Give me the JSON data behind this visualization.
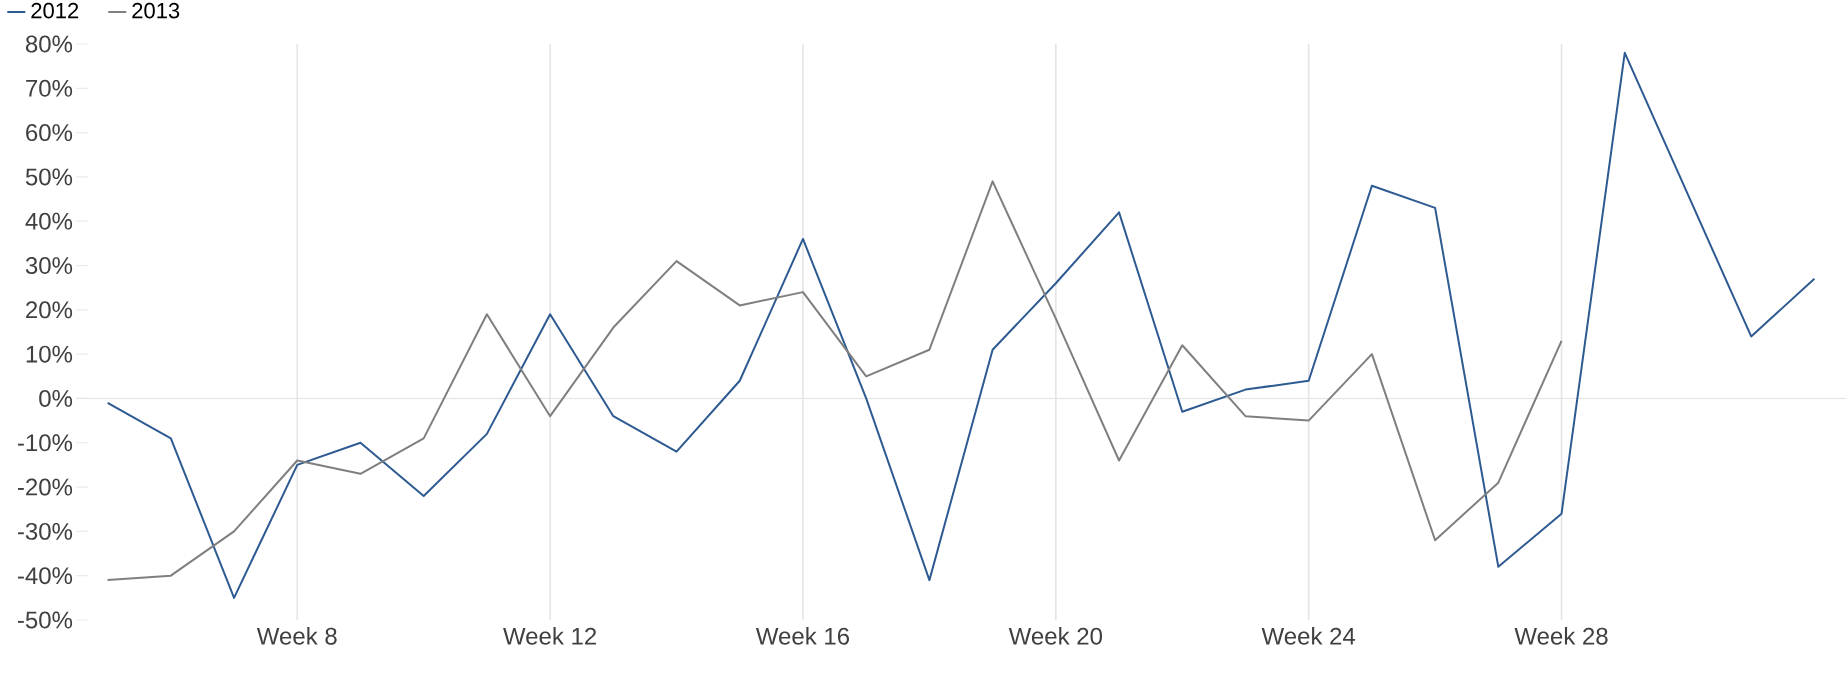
{
  "chart_data": {
    "type": "line",
    "categories": [
      null,
      null,
      null,
      "Week 8",
      null,
      null,
      null,
      "Week 12",
      null,
      null,
      null,
      "Week 16",
      null,
      null,
      null,
      "Week 20",
      null,
      null,
      null,
      "Week 24",
      null,
      null,
      null,
      "Week 28",
      null,
      null,
      null,
      null
    ],
    "series": [
      {
        "name": "2012",
        "color": "#2e5a92",
        "values": [
          -1,
          -9,
          -45,
          -15,
          -10,
          -22,
          -8,
          19,
          -4,
          -12,
          4,
          36,
          0,
          -41,
          11,
          26,
          42,
          -3,
          2,
          4,
          48,
          43,
          -38,
          -26,
          78,
          46,
          14,
          27
        ]
      },
      {
        "name": "2013",
        "color": "#7f7f7f",
        "values": [
          -41,
          -40,
          -30,
          -14,
          -17,
          -9,
          19,
          -4,
          16,
          31,
          21,
          24,
          5,
          11,
          49,
          18,
          -14,
          12,
          -4,
          -5,
          10,
          -32,
          -19,
          13,
          null,
          null,
          null,
          null
        ]
      }
    ],
    "ylim": [
      -50,
      80
    ],
    "yticks": [
      {
        "value": -50,
        "label": "-50%"
      },
      {
        "value": -40,
        "label": "-40%"
      },
      {
        "value": -30,
        "label": "-30%"
      },
      {
        "value": -20,
        "label": "-20%"
      },
      {
        "value": -10,
        "label": "-10%"
      },
      {
        "value": 0,
        "label": "0%"
      },
      {
        "value": 10,
        "label": "10%"
      },
      {
        "value": 20,
        "label": "20%"
      },
      {
        "value": 30,
        "label": "30%"
      },
      {
        "value": 40,
        "label": "40%"
      },
      {
        "value": 50,
        "label": "50%"
      },
      {
        "value": 60,
        "label": "60%"
      },
      {
        "value": 70,
        "label": "70%"
      },
      {
        "value": 80,
        "label": "80%"
      }
    ],
    "grid": "x",
    "ref_lines": [
      {
        "axis": "y",
        "value": 0,
        "color": "#e6e6e6"
      }
    ],
    "legend": "top left",
    "marker": "none",
    "line_style": "solid"
  }
}
